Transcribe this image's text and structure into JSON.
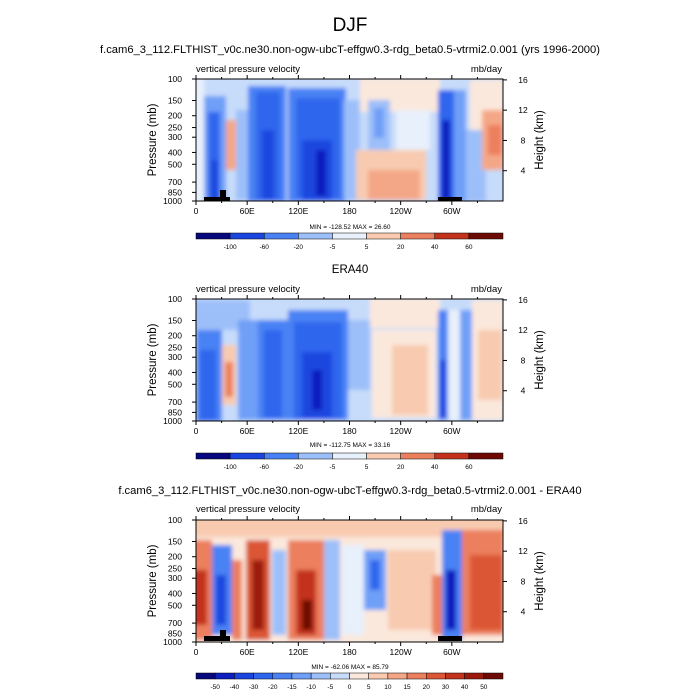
{
  "page": {
    "title": "DJF",
    "subtitle": "f.cam6_3_112.FLTHIST_v0c.ne30.non-ogw-ubcT-effgw0.3-rdg_beta0.5-vtrmi2.0.001 (yrs 1996-2000)",
    "panel2_title": "ERA40",
    "panel3_title": "f.cam6_3_112.FLTHIST_v0c.ne30.non-ogw-ubcT-effgw0.3-rdg_beta0.5-vtrmi2.0.001 - ERA40"
  },
  "colors": {
    "palette": [
      "#08087e",
      "#0e1fbf",
      "#1a46df",
      "#2f66ee",
      "#4a82f4",
      "#6f9ff8",
      "#9dbff9",
      "#c7dcfa",
      "#e8f0fb",
      "#fbe8dc",
      "#f8cbb0",
      "#f4a786",
      "#ec7f5d",
      "#db5736",
      "#c3321a",
      "#9c1a0d",
      "#6d0a04"
    ]
  },
  "chart_data": [
    {
      "type": "contour",
      "name": "model",
      "title": "vertical pressure velocity",
      "units": "mb/day",
      "ylabel": "Pressure (mb)",
      "ylabel_right": "Height (km)",
      "x_ticks": [
        "0",
        "60E",
        "120E",
        "180",
        "120W",
        "60W"
      ],
      "x_range": [
        0,
        360
      ],
      "p_ticks": [
        "100",
        "150",
        "200",
        "250",
        "300",
        "400",
        "500",
        "700",
        "850",
        "1000"
      ],
      "h_ticks": [
        "4",
        "8",
        "12",
        "16"
      ],
      "min_max": "MIN = -128.52  MAX = 26.60",
      "levels": [
        -100,
        -60,
        -20,
        -5,
        5,
        20,
        40,
        60
      ],
      "colorbar_labels": [
        "-100",
        "-60",
        "-20",
        "-5",
        "5",
        "20",
        "40",
        "60"
      ]
    },
    {
      "type": "contour",
      "name": "era40",
      "title": "vertical pressure velocity",
      "units": "mb/day",
      "ylabel": "Pressure (mb)",
      "ylabel_right": "Height (km)",
      "x_ticks": [
        "0",
        "60E",
        "120E",
        "180",
        "120W",
        "60W"
      ],
      "x_range": [
        0,
        360
      ],
      "p_ticks": [
        "100",
        "150",
        "200",
        "250",
        "300",
        "400",
        "500",
        "700",
        "850",
        "1000"
      ],
      "h_ticks": [
        "4",
        "8",
        "12",
        "16"
      ],
      "min_max": "MIN = -112.75  MAX = 33.16",
      "levels": [
        -100,
        -60,
        -20,
        -5,
        5,
        20,
        40,
        60
      ],
      "colorbar_labels": [
        "-100",
        "-60",
        "-20",
        "-5",
        "5",
        "20",
        "40",
        "60"
      ]
    },
    {
      "type": "contour",
      "name": "diff",
      "title": "vertical pressure velocity",
      "units": "mb/day",
      "ylabel": "Pressure (mb)",
      "ylabel_right": "Height (km)",
      "x_ticks": [
        "0",
        "60E",
        "120E",
        "180",
        "120W",
        "60W"
      ],
      "x_range": [
        0,
        360
      ],
      "p_ticks": [
        "100",
        "150",
        "200",
        "250",
        "300",
        "400",
        "500",
        "700",
        "850",
        "1000"
      ],
      "h_ticks": [
        "4",
        "8",
        "12",
        "16"
      ],
      "min_max": "MIN = -62.06  MAX = 85.79",
      "levels": [
        -50,
        -40,
        -30,
        -20,
        -15,
        -10,
        -5,
        0,
        5,
        10,
        15,
        20,
        30,
        40,
        50
      ],
      "colorbar_labels": [
        "-50",
        "-40",
        "-30",
        "-20",
        "-15",
        "-10",
        "-5",
        "0",
        "5",
        "10",
        "15",
        "20",
        "30",
        "40",
        "50"
      ]
    }
  ]
}
